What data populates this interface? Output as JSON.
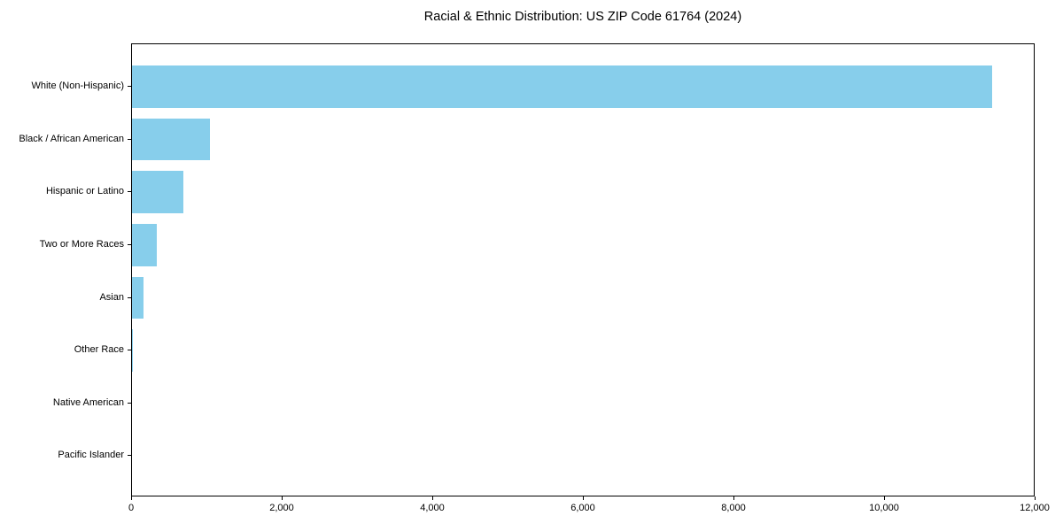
{
  "page": {
    "background": "#ffffff",
    "title": "Racial & Ethnic Distribution: US ZIP Code 61764 (2024)"
  },
  "chart_data": {
    "type": "bar",
    "orientation": "horizontal",
    "title": "Racial & Ethnic Distribution: US ZIP Code 61764 (2024)",
    "xlabel": "",
    "ylabel": "",
    "categories": [
      "White (Non-Hispanic)",
      "Black / African American",
      "Hispanic or Latino",
      "Two or More Races",
      "Asian",
      "Other Race",
      "Native American",
      "Pacific Islander"
    ],
    "values": [
      11420,
      1040,
      680,
      335,
      155,
      15,
      0,
      0
    ],
    "xlim": [
      0,
      12000
    ],
    "xticks": [
      0,
      2000,
      4000,
      6000,
      8000,
      10000,
      12000
    ],
    "xtick_labels": [
      "0",
      "2,000",
      "4,000",
      "6,000",
      "8,000",
      "10,000",
      "12,000"
    ],
    "bar_color": "#87CEEB",
    "axis_color": "#000000",
    "text_color": "#000000",
    "grid": false,
    "legend": null
  }
}
